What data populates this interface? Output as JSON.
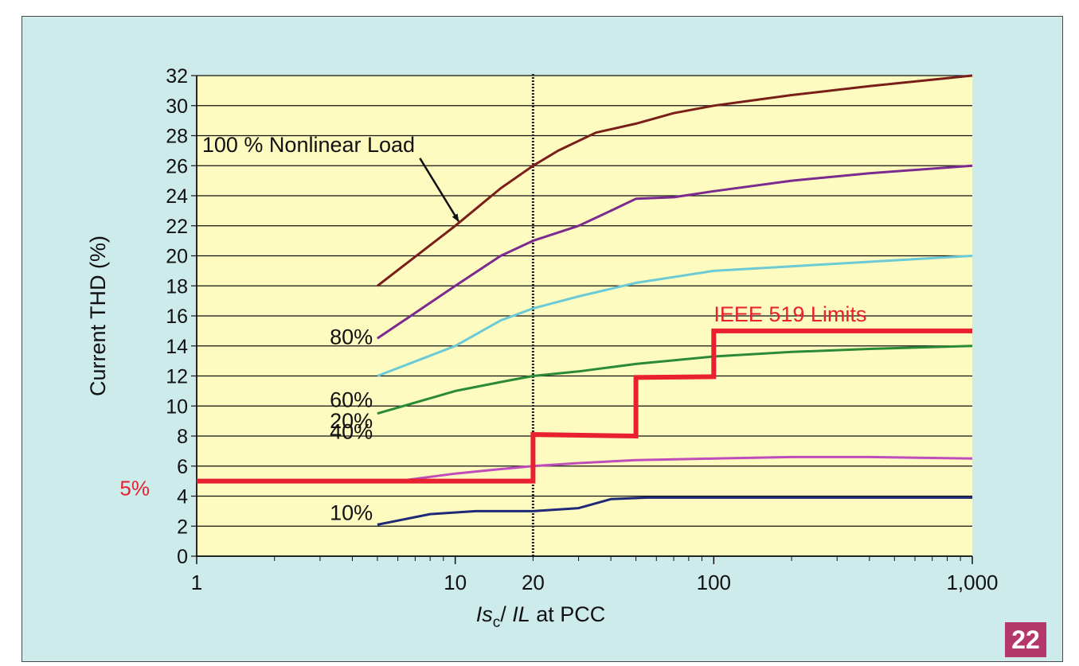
{
  "figure_number": "22",
  "chart_data": {
    "type": "line",
    "title": "",
    "ylabel": "Current THD (%)",
    "xlabel_parts": {
      "main1": "I",
      "sub1": "c",
      "main2": "/ ",
      "main3": "IL",
      "tail": "  at PCC"
    },
    "x_scale": "log",
    "xlim": [
      1,
      1000
    ],
    "ylim": [
      0,
      32
    ],
    "grid": "horizontal",
    "background_color": "#fdfbbf",
    "x_ticks": [
      {
        "value": 1,
        "label": "1"
      },
      {
        "value": 10,
        "label": "10"
      },
      {
        "value": 20,
        "label": "20"
      },
      {
        "value": 100,
        "label": "100"
      },
      {
        "value": 1000,
        "label": "1,000"
      }
    ],
    "y_ticks": [
      0,
      2,
      4,
      6,
      8,
      10,
      12,
      14,
      16,
      18,
      20,
      22,
      24,
      26,
      28,
      30,
      32
    ],
    "reference_line": {
      "x": 20,
      "style": "dotted",
      "color": "#222222"
    },
    "series": [
      {
        "key": "nl100",
        "color": "#7a1e1a",
        "points": [
          [
            5,
            18
          ],
          [
            10,
            22
          ],
          [
            15,
            24.5
          ],
          [
            20,
            26
          ],
          [
            25,
            27
          ],
          [
            35,
            28.2
          ],
          [
            50,
            28.8
          ],
          [
            70,
            29.5
          ],
          [
            100,
            30
          ],
          [
            200,
            30.7
          ],
          [
            400,
            31.3
          ],
          [
            1000,
            32
          ]
        ]
      },
      {
        "key": "nl80",
        "color": "#7b2a8f",
        "points": [
          [
            5,
            14.5
          ],
          [
            10,
            18
          ],
          [
            15,
            20
          ],
          [
            20,
            21
          ],
          [
            30,
            22
          ],
          [
            40,
            23
          ],
          [
            50,
            23.8
          ],
          [
            70,
            23.9
          ],
          [
            100,
            24.3
          ],
          [
            200,
            25
          ],
          [
            400,
            25.5
          ],
          [
            1000,
            26
          ]
        ]
      },
      {
        "key": "nl60",
        "color": "#6ccad6",
        "points": [
          [
            5,
            12
          ],
          [
            10,
            14
          ],
          [
            15,
            15.7
          ],
          [
            20,
            16.5
          ],
          [
            30,
            17.3
          ],
          [
            50,
            18.2
          ],
          [
            100,
            19
          ],
          [
            200,
            19.3
          ],
          [
            400,
            19.6
          ],
          [
            1000,
            20
          ]
        ]
      },
      {
        "key": "nl40",
        "color": "#2b8a38",
        "points": [
          [
            5,
            9.5
          ],
          [
            10,
            11
          ],
          [
            15,
            11.6
          ],
          [
            20,
            12
          ],
          [
            30,
            12.3
          ],
          [
            50,
            12.8
          ],
          [
            100,
            13.3
          ],
          [
            200,
            13.6
          ],
          [
            400,
            13.8
          ],
          [
            1000,
            14
          ]
        ]
      },
      {
        "key": "nl20",
        "color": "#c04cbc",
        "points": [
          [
            6,
            5
          ],
          [
            10,
            5.5
          ],
          [
            15,
            5.8
          ],
          [
            20,
            6
          ],
          [
            30,
            6.2
          ],
          [
            50,
            6.4
          ],
          [
            100,
            6.5
          ],
          [
            200,
            6.6
          ],
          [
            400,
            6.6
          ],
          [
            1000,
            6.5
          ]
        ]
      },
      {
        "key": "nl10",
        "color": "#1e2a78",
        "points": [
          [
            5,
            2.1
          ],
          [
            8,
            2.8
          ],
          [
            12,
            3
          ],
          [
            20,
            3
          ],
          [
            30,
            3.2
          ],
          [
            40,
            3.8
          ],
          [
            55,
            3.9
          ],
          [
            100,
            3.9
          ],
          [
            1000,
            3.9
          ]
        ]
      },
      {
        "key": "ieee519",
        "color": "#e8202f",
        "width": 6,
        "points": [
          [
            1,
            5
          ],
          [
            20,
            5
          ],
          [
            20,
            8.1
          ],
          [
            50,
            8
          ],
          [
            50,
            11.9
          ],
          [
            100,
            11.95
          ],
          [
            100,
            15
          ],
          [
            1000,
            15
          ]
        ]
      }
    ],
    "annotations": [
      {
        "key": "lbl100",
        "text": "100 % Nonlinear Load",
        "color": "#111111",
        "x": 1.05,
        "y": 27.4,
        "anchor": "start"
      },
      {
        "key": "lbl80",
        "text": "80%",
        "color": "#111111",
        "x": 4.8,
        "y": 14.6,
        "anchor": "end"
      },
      {
        "key": "lbl60",
        "text": "60%",
        "color": "#111111",
        "x": 4.8,
        "y": 10.4,
        "anchor": "end"
      },
      {
        "key": "lbl40",
        "text": "40%",
        "color": "#111111",
        "x": 4.8,
        "y": 8.3,
        "anchor": "end"
      },
      {
        "key": "lbl20",
        "text": "20%",
        "color": "#111111",
        "x": 4.8,
        "y": 9.0,
        "anchor": "end"
      },
      {
        "key": "lbl10",
        "text": "10%",
        "color": "#111111",
        "x": 4.8,
        "y": 2.9,
        "anchor": "end"
      },
      {
        "key": "lblieee",
        "text": "IEEE 519 Limits",
        "color": "#e8202f",
        "x": 100,
        "y": 16.1,
        "anchor": "start"
      }
    ],
    "arrow": {
      "from": [
        7.3,
        26.5
      ],
      "to": [
        10.3,
        22.3
      ],
      "color": "#111111"
    },
    "side_label": {
      "text": "5%",
      "value": 5,
      "color": "#e8202f"
    }
  }
}
